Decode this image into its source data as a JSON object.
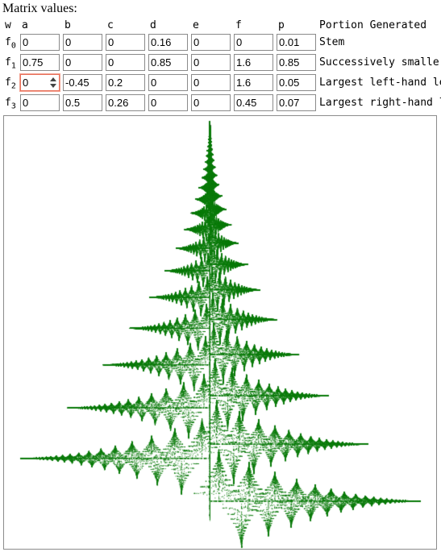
{
  "heading": "Matrix values:",
  "columns": [
    "w",
    "a",
    "b",
    "c",
    "d",
    "e",
    "f",
    "p",
    "Portion Generated"
  ],
  "rows": [
    {
      "label": "f",
      "sub": "0",
      "values": [
        "0",
        "0",
        "0",
        "0.16",
        "0",
        "0",
        "0.01"
      ],
      "portion": "Stem"
    },
    {
      "label": "f",
      "sub": "1",
      "values": [
        "0.75",
        "0",
        "0",
        "0.85",
        "0",
        "1.6",
        "0.85"
      ],
      "portion": "Successively smaller leaflets"
    },
    {
      "label": "f",
      "sub": "2",
      "values": [
        "0",
        "-0.45",
        "0.2",
        "0",
        "0",
        "1.6",
        "0.05"
      ],
      "portion": "Largest left-hand leaflet"
    },
    {
      "label": "f",
      "sub": "3",
      "values": [
        "0",
        "0.5",
        "0.26",
        "0",
        "0",
        "0.45",
        "0.07"
      ],
      "portion": "Largest right-hand leaflet"
    }
  ],
  "focused_cell": "f2-a",
  "fern_color": "#0a7a0a",
  "spinner_icon": "spinner-arrows-icon"
}
